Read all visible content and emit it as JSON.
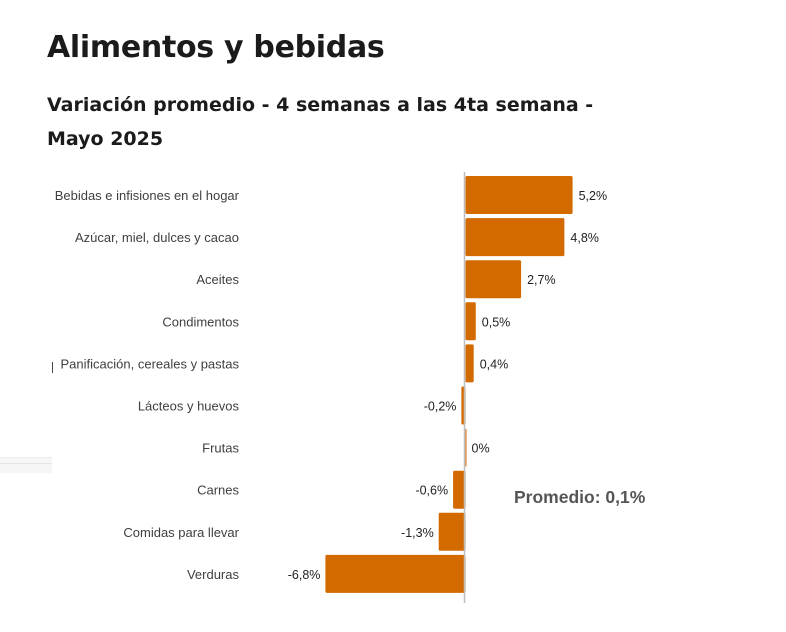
{
  "header": {
    "title": "Alimentos y bebidas",
    "subtitle": "Variación promedio - 4 semanas a las 4ta semana - Mayo 2025"
  },
  "colors": {
    "bar": "#D36A00",
    "axis": "#bdbdbd",
    "text": "#1b1b1b"
  },
  "chart_data": {
    "type": "bar",
    "orientation": "horizontal",
    "title": "Alimentos y bebidas",
    "subtitle": "Variación promedio - 4 semanas a las 4ta semana - Mayo 2025",
    "xlabel": "",
    "ylabel": "",
    "categories": [
      "Bebidas e infisiones en el hogar",
      "Azúcar, miel, dulces y cacao",
      "Aceites",
      "Condimentos",
      "Panificación, cereales y pastas",
      "Lácteos y huevos",
      "Frutas",
      "Carnes",
      "Comidas para llevar",
      "Verduras"
    ],
    "values": [
      5.2,
      4.8,
      2.7,
      0.5,
      0.4,
      -0.2,
      0,
      -0.6,
      -1.3,
      -6.8
    ],
    "value_labels": [
      "5,2%",
      "4,8%",
      "2,7%",
      "0,5%",
      "0,4%",
      "-0,2%",
      "0%",
      "-0,6%",
      "-1,3%",
      "-6,8%"
    ],
    "unit": "%",
    "xlim": [
      -6.8,
      5.2
    ],
    "grid": false,
    "legend": "none",
    "annotations": [
      {
        "text": "Promedio: 0,1%",
        "value": 0.1,
        "placement": "right-lower"
      }
    ]
  }
}
